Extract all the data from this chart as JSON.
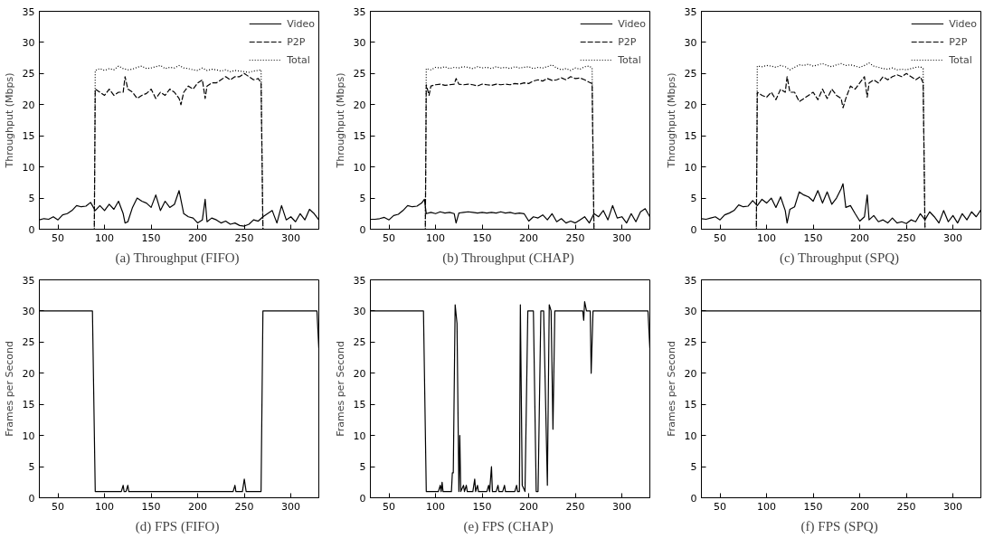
{
  "chart_data": [
    {
      "type": "line",
      "title": "(a)  Throughput (FIFO)",
      "ylabel": "Throughput (Mbps)",
      "xlim": [
        30,
        330
      ],
      "ylim": [
        0,
        35
      ],
      "xticks": [
        50,
        100,
        150,
        200,
        250,
        300
      ],
      "yticks": [
        0,
        5,
        10,
        15,
        20,
        25,
        30,
        35
      ],
      "legend": "top right",
      "grid": false,
      "series": [
        {
          "name": "Video",
          "color": "#000000",
          "line_style": "solid",
          "x": [
            30,
            35,
            40,
            45,
            50,
            55,
            60,
            65,
            70,
            75,
            80,
            85,
            90,
            95,
            100,
            105,
            110,
            115,
            120,
            122,
            125,
            130,
            135,
            140,
            145,
            150,
            155,
            160,
            165,
            170,
            175,
            180,
            185,
            190,
            195,
            200,
            205,
            208,
            210,
            215,
            220,
            225,
            230,
            235,
            240,
            245,
            250,
            255,
            260,
            265,
            270,
            275,
            280,
            285,
            290,
            295,
            300,
            305,
            310,
            315,
            320,
            325,
            330
          ],
          "values": [
            1.5,
            1.7,
            1.6,
            2.0,
            1.5,
            2.3,
            2.5,
            3.0,
            3.8,
            3.6,
            3.7,
            4.3,
            3.0,
            3.8,
            3.0,
            4.0,
            3.2,
            4.5,
            2.5,
            1.0,
            1.2,
            3.5,
            5.0,
            4.5,
            4.2,
            3.5,
            5.5,
            3.0,
            4.5,
            3.5,
            4.0,
            6.2,
            2.5,
            2.0,
            1.8,
            1.0,
            1.5,
            4.8,
            1.2,
            1.8,
            1.5,
            1.0,
            1.3,
            0.8,
            1.0,
            0.6,
            0.5,
            0.8,
            1.5,
            1.3,
            2.0,
            2.5,
            3.0,
            1.0,
            3.8,
            1.5,
            2.0,
            1.2,
            2.5,
            1.5,
            3.2,
            2.5,
            1.5
          ]
        },
        {
          "name": "P2P",
          "color": "#000000",
          "line_style": "dashed",
          "x": [
            30,
            89,
            90,
            95,
            100,
            105,
            110,
            115,
            120,
            122,
            125,
            130,
            135,
            140,
            145,
            150,
            155,
            160,
            165,
            170,
            175,
            180,
            182,
            185,
            190,
            195,
            200,
            205,
            208,
            210,
            215,
            220,
            225,
            230,
            235,
            240,
            245,
            250,
            255,
            260,
            265,
            268,
            270,
            330
          ],
          "values": [
            0,
            0,
            22.5,
            22,
            21.5,
            22.5,
            21.5,
            22,
            22,
            24.5,
            22.5,
            22,
            21,
            21.5,
            21.8,
            22.5,
            21,
            22,
            21.5,
            22.5,
            22,
            21,
            20,
            22,
            23,
            22.5,
            23.5,
            24,
            21,
            23,
            23.5,
            23.5,
            24,
            24.5,
            24,
            24.5,
            24.5,
            25,
            24.5,
            24,
            24.2,
            23.5,
            0,
            0
          ]
        },
        {
          "name": "Total",
          "color": "#000000",
          "line_style": "dotted",
          "x": [
            30,
            89,
            90,
            95,
            100,
            105,
            110,
            115,
            120,
            125,
            130,
            135,
            140,
            145,
            150,
            155,
            160,
            165,
            170,
            175,
            180,
            185,
            190,
            195,
            200,
            205,
            210,
            215,
            220,
            225,
            230,
            235,
            240,
            245,
            250,
            255,
            260,
            265,
            268,
            270,
            330
          ],
          "values": [
            0,
            0,
            25.5,
            25.8,
            25.5,
            25.8,
            25.6,
            26.2,
            25.8,
            25.6,
            25.7,
            26.0,
            26.2,
            25.8,
            25.9,
            26.1,
            26.3,
            25.8,
            26.0,
            25.9,
            26.3,
            25.9,
            25.8,
            25.6,
            25.5,
            25.9,
            25.5,
            25.7,
            25.6,
            25.4,
            25.6,
            25.3,
            25.5,
            25.4,
            25.3,
            25.2,
            25.4,
            25.5,
            25.6,
            0,
            0
          ]
        }
      ]
    },
    {
      "type": "line",
      "title": "(b)  Throughput (CHAP)",
      "ylabel": "Throughput (Mbps)",
      "xlim": [
        30,
        330
      ],
      "ylim": [
        0,
        35
      ],
      "xticks": [
        50,
        100,
        150,
        200,
        250,
        300
      ],
      "yticks": [
        0,
        5,
        10,
        15,
        20,
        25,
        30,
        35
      ],
      "legend": "top right",
      "grid": false,
      "series": [
        {
          "name": "Video",
          "color": "#000000",
          "line_style": "solid",
          "x": [
            30,
            35,
            40,
            45,
            50,
            55,
            60,
            65,
            70,
            75,
            80,
            85,
            88,
            90,
            95,
            100,
            105,
            110,
            115,
            120,
            122,
            125,
            130,
            135,
            140,
            145,
            150,
            155,
            160,
            165,
            170,
            175,
            180,
            185,
            190,
            195,
            200,
            205,
            210,
            215,
            220,
            225,
            230,
            235,
            240,
            245,
            250,
            255,
            260,
            265,
            270,
            275,
            280,
            285,
            290,
            295,
            300,
            305,
            310,
            315,
            320,
            325,
            330
          ],
          "values": [
            1.6,
            1.6,
            1.7,
            1.9,
            1.5,
            2.2,
            2.4,
            3.0,
            3.8,
            3.6,
            3.7,
            4.2,
            4.8,
            2.5,
            2.7,
            2.5,
            2.8,
            2.6,
            2.7,
            2.5,
            1.0,
            2.6,
            2.7,
            2.8,
            2.7,
            2.6,
            2.7,
            2.6,
            2.7,
            2.6,
            2.8,
            2.6,
            2.7,
            2.5,
            2.6,
            2.5,
            1.3,
            2.0,
            1.8,
            2.3,
            1.5,
            2.5,
            1.2,
            1.7,
            1.0,
            1.3,
            1.0,
            1.5,
            2.0,
            1.0,
            2.5,
            2.0,
            3.0,
            1.5,
            3.8,
            1.8,
            2.0,
            1.0,
            2.5,
            1.2,
            2.8,
            3.3,
            2.0
          ]
        },
        {
          "name": "P2P",
          "color": "#000000",
          "line_style": "dashed",
          "x": [
            30,
            89,
            90,
            93,
            95,
            100,
            105,
            110,
            115,
            120,
            122,
            125,
            130,
            135,
            140,
            145,
            150,
            155,
            160,
            165,
            170,
            175,
            180,
            185,
            190,
            195,
            200,
            205,
            210,
            215,
            220,
            225,
            230,
            235,
            240,
            245,
            250,
            255,
            260,
            265,
            268,
            270,
            330
          ],
          "values": [
            0,
            0,
            23.2,
            21.5,
            23.0,
            23.2,
            23.3,
            23.1,
            23.2,
            23.3,
            24.2,
            23.3,
            23.2,
            23.3,
            23.2,
            23.0,
            23.3,
            23.2,
            23.1,
            23.3,
            23.2,
            23.3,
            23.2,
            23.4,
            23.3,
            23.5,
            23.4,
            23.8,
            24.0,
            23.8,
            24.2,
            23.9,
            24.0,
            24.3,
            24.0,
            24.5,
            24.2,
            24.3,
            24.0,
            23.6,
            23.4,
            0,
            0
          ]
        },
        {
          "name": "Total",
          "color": "#000000",
          "line_style": "dotted",
          "x": [
            30,
            89,
            90,
            95,
            100,
            105,
            110,
            115,
            120,
            125,
            130,
            135,
            140,
            145,
            150,
            155,
            160,
            165,
            170,
            175,
            180,
            185,
            190,
            195,
            200,
            205,
            210,
            215,
            220,
            225,
            230,
            235,
            240,
            245,
            250,
            255,
            260,
            265,
            268,
            270,
            330
          ],
          "values": [
            0,
            0,
            25.8,
            25.6,
            26.0,
            25.9,
            26.1,
            25.8,
            26.0,
            25.9,
            26.1,
            26.0,
            25.8,
            26.1,
            25.9,
            26.0,
            25.8,
            26.1,
            25.9,
            26.0,
            25.8,
            26.1,
            25.9,
            26.0,
            26.1,
            25.8,
            26.0,
            25.9,
            26.1,
            26.4,
            25.9,
            25.6,
            25.8,
            25.5,
            25.9,
            25.7,
            26.1,
            26.2,
            25.9,
            0,
            0
          ]
        }
      ]
    },
    {
      "type": "line",
      "title": "(c)  Throughput (SPQ)",
      "ylabel": "Throughput (Mbps)",
      "xlim": [
        30,
        330
      ],
      "ylim": [
        0,
        35
      ],
      "xticks": [
        50,
        100,
        150,
        200,
        250,
        300
      ],
      "yticks": [
        0,
        5,
        10,
        15,
        20,
        25,
        30,
        35
      ],
      "legend": "top right",
      "grid": false,
      "series": [
        {
          "name": "Video",
          "color": "#000000",
          "line_style": "solid",
          "x": [
            30,
            35,
            40,
            45,
            50,
            55,
            60,
            65,
            70,
            75,
            80,
            85,
            90,
            95,
            100,
            105,
            110,
            115,
            120,
            122,
            125,
            130,
            135,
            140,
            145,
            150,
            155,
            160,
            165,
            170,
            175,
            180,
            182,
            185,
            190,
            195,
            200,
            205,
            208,
            210,
            215,
            220,
            225,
            230,
            235,
            240,
            245,
            250,
            255,
            260,
            265,
            270,
            275,
            280,
            285,
            290,
            295,
            300,
            305,
            310,
            315,
            320,
            325,
            330
          ],
          "values": [
            1.7,
            1.6,
            1.8,
            2.0,
            1.5,
            2.3,
            2.6,
            3.0,
            3.9,
            3.6,
            3.7,
            4.6,
            3.8,
            4.8,
            4.2,
            5.0,
            3.5,
            5.2,
            3.0,
            1.0,
            3.2,
            3.6,
            6.0,
            5.5,
            5.2,
            4.5,
            6.2,
            4.2,
            6.0,
            4.0,
            5.0,
            6.5,
            7.3,
            3.5,
            3.8,
            2.5,
            1.3,
            2.0,
            5.5,
            1.5,
            2.2,
            1.2,
            1.5,
            1.0,
            1.8,
            1.0,
            1.2,
            0.9,
            1.5,
            1.2,
            2.5,
            1.5,
            2.8,
            2.0,
            1.0,
            3.0,
            1.2,
            2.2,
            1.0,
            2.5,
            1.5,
            2.8,
            2.0,
            3.1
          ]
        },
        {
          "name": "P2P",
          "color": "#000000",
          "line_style": "dashed",
          "x": [
            30,
            89,
            90,
            95,
            100,
            105,
            110,
            115,
            120,
            122,
            125,
            130,
            135,
            140,
            145,
            150,
            155,
            160,
            165,
            170,
            175,
            180,
            182,
            185,
            190,
            195,
            200,
            205,
            208,
            210,
            215,
            220,
            225,
            230,
            235,
            240,
            245,
            250,
            255,
            260,
            265,
            268,
            270,
            330
          ],
          "values": [
            0,
            0,
            22,
            21.5,
            21.2,
            22,
            20.8,
            22.5,
            22,
            24.5,
            22,
            22,
            20.5,
            21,
            21.5,
            22,
            20.8,
            22.5,
            21,
            22.5,
            21.5,
            21,
            19.5,
            21,
            23,
            22.5,
            23.5,
            24.5,
            21.2,
            23.5,
            24,
            23.5,
            24.5,
            24,
            24.5,
            24.8,
            24.5,
            25,
            24.5,
            24,
            24.5,
            23.5,
            0,
            0
          ]
        },
        {
          "name": "Total",
          "color": "#000000",
          "line_style": "dotted",
          "x": [
            30,
            89,
            90,
            95,
            100,
            105,
            110,
            115,
            120,
            125,
            130,
            135,
            140,
            145,
            150,
            155,
            160,
            165,
            170,
            175,
            180,
            185,
            190,
            195,
            200,
            205,
            210,
            215,
            220,
            225,
            230,
            235,
            240,
            245,
            250,
            255,
            260,
            265,
            268,
            270,
            330
          ],
          "values": [
            0,
            0,
            26.2,
            26.1,
            26.3,
            26.2,
            26.0,
            26.3,
            26.1,
            25.6,
            26.0,
            26.4,
            26.3,
            26.5,
            26.2,
            26.4,
            26.6,
            26.3,
            26.1,
            26.4,
            26.6,
            26.3,
            26.4,
            26.2,
            26.0,
            26.3,
            26.7,
            26.2,
            26.0,
            25.8,
            25.7,
            25.9,
            25.6,
            25.7,
            25.6,
            25.8,
            26.0,
            26.1,
            25.8,
            0,
            0
          ]
        }
      ]
    },
    {
      "type": "line",
      "title": "(d)  FPS (FIFO)",
      "ylabel": "Frames per Second",
      "xlim": [
        30,
        330
      ],
      "ylim": [
        0,
        35
      ],
      "xticks": [
        50,
        100,
        150,
        200,
        250,
        300
      ],
      "yticks": [
        0,
        5,
        10,
        15,
        20,
        25,
        30,
        35
      ],
      "legend": false,
      "grid": false,
      "series": [
        {
          "color": "#000000",
          "line_style": "solid",
          "x": [
            30,
            87,
            90,
            118,
            120,
            121,
            123,
            125,
            126,
            238,
            240,
            241,
            248,
            250,
            252,
            268,
            270,
            328,
            330
          ],
          "values": [
            30,
            30,
            1,
            1,
            2,
            1,
            1,
            2,
            1,
            1,
            2,
            1,
            1,
            3,
            1,
            1,
            30,
            30,
            24
          ]
        }
      ]
    },
    {
      "type": "line",
      "title": "(e)  FPS (CHAP)",
      "ylabel": "Frames per Second",
      "xlim": [
        30,
        330
      ],
      "ylim": [
        0,
        35
      ],
      "xticks": [
        50,
        100,
        150,
        200,
        250,
        300
      ],
      "yticks": [
        0,
        5,
        10,
        15,
        20,
        25,
        30,
        35
      ],
      "legend": false,
      "grid": false,
      "series": [
        {
          "color": "#000000",
          "line_style": "solid",
          "x": [
            30,
            87,
            90,
            103,
            105,
            106,
            107,
            108,
            117,
            118,
            119,
            121,
            123,
            125,
            126,
            127,
            130,
            131,
            133,
            134,
            140,
            142,
            143,
            145,
            146,
            155,
            157,
            158,
            160,
            161,
            165,
            167,
            168,
            172,
            174,
            175,
            185,
            187,
            188,
            190,
            191,
            193,
            196,
            199,
            205,
            208,
            210,
            213,
            216,
            220,
            222,
            224,
            226,
            228,
            258,
            259,
            260,
            262,
            266,
            267,
            269,
            328,
            330
          ],
          "values": [
            30,
            30,
            1,
            1,
            2,
            1,
            2.5,
            1,
            1,
            4,
            4,
            31,
            28,
            1,
            10,
            1,
            2,
            1,
            2,
            1,
            1,
            3,
            1,
            2,
            1,
            1,
            2,
            1,
            5,
            1,
            1,
            2,
            1,
            1,
            2,
            1,
            1,
            2,
            1,
            1,
            31,
            2,
            1,
            30,
            30,
            1,
            1,
            30,
            30,
            2,
            31,
            30,
            11,
            30,
            30,
            28.5,
            31.5,
            30,
            30,
            20,
            30,
            30,
            24
          ]
        }
      ]
    },
    {
      "type": "line",
      "title": "(f)  FPS (SPQ)",
      "ylabel": "Frames per Second",
      "xlim": [
        30,
        330
      ],
      "ylim": [
        0,
        35
      ],
      "xticks": [
        50,
        100,
        150,
        200,
        250,
        300
      ],
      "yticks": [
        0,
        5,
        10,
        15,
        20,
        25,
        30,
        35
      ],
      "legend": false,
      "grid": false,
      "series": [
        {
          "color": "#000000",
          "line_style": "solid",
          "x": [
            30,
            330
          ],
          "values": [
            30,
            30
          ]
        }
      ]
    }
  ]
}
